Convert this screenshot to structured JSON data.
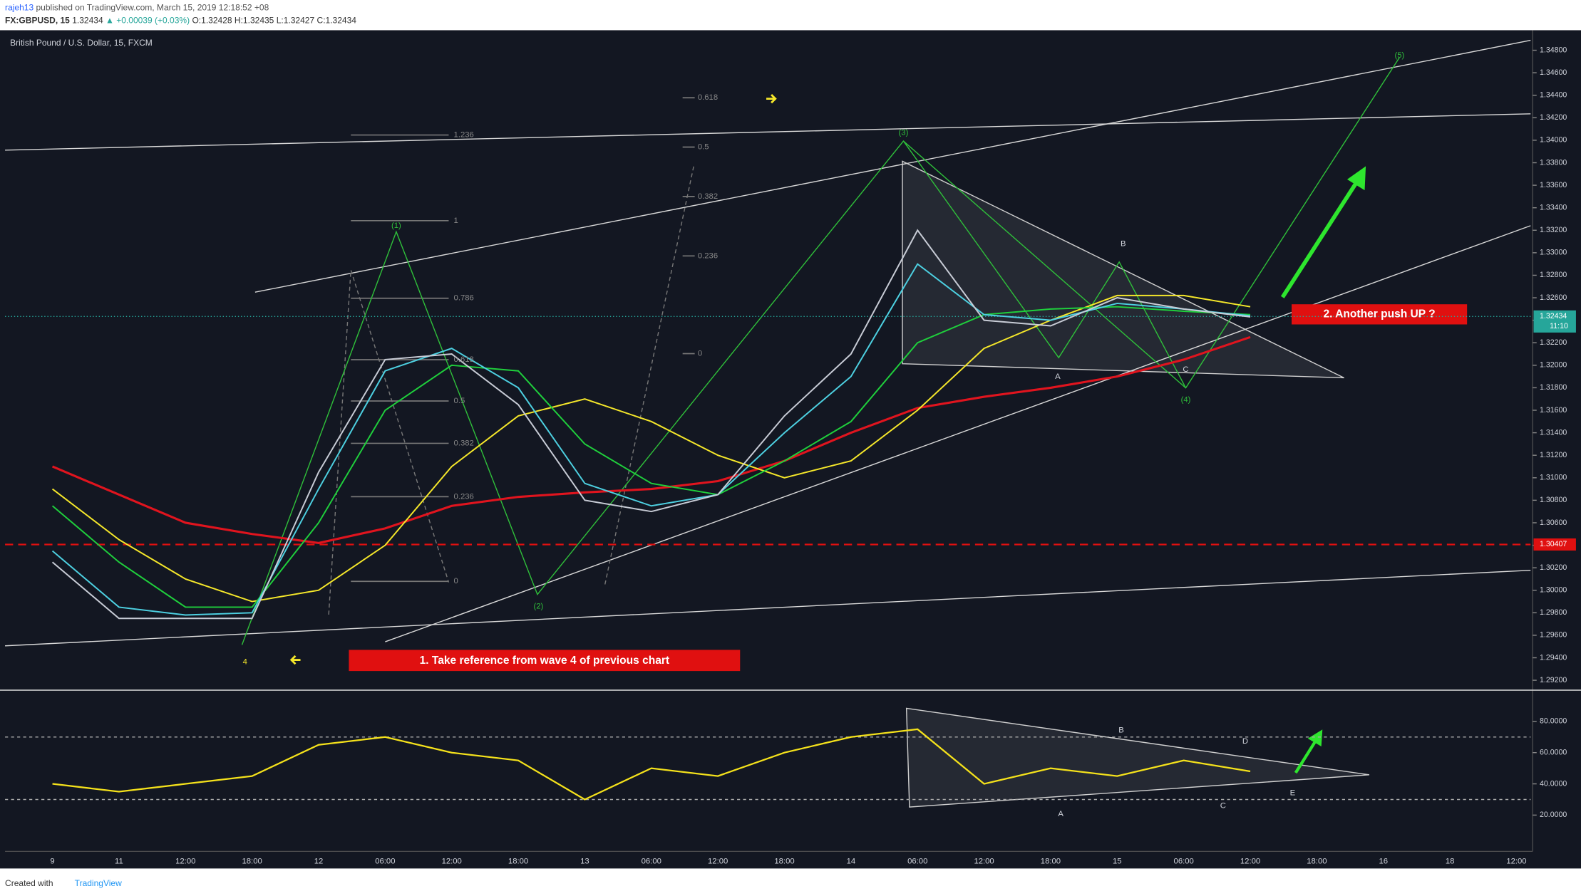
{
  "header": {
    "author": "rajeh13",
    "published": "published on TradingView.com, March 15, 2019 12:18:52 +08",
    "symbol": "FX:GBPUSD, 15",
    "last": "1.32434",
    "change": "▲ +0.00039 (+0.03%)",
    "open": "O:1.32428",
    "high": "H:1.32435",
    "low": "L:1.32427",
    "close": "C:1.32434"
  },
  "chart_data": [
    {
      "type": "line",
      "title": "British Pound / U.S. Dollar, 15, FXCM",
      "categories": [
        "9",
        "11",
        "12:00",
        "18:00",
        "12",
        "06:00",
        "12:00",
        "18:00",
        "13",
        "06:00",
        "12:00",
        "18:00",
        "14",
        "06:00",
        "12:00",
        "18:00",
        "15",
        "06:00",
        "12:00",
        "18:00",
        "16",
        "18",
        "12:00"
      ],
      "series": [
        {
          "color": "#e0141e",
          "values": [
            1.311,
            1.3085,
            1.306,
            1.305,
            1.3042,
            1.3055,
            1.3075,
            1.3083,
            1.3087,
            1.309,
            1.3097,
            1.3115,
            1.314,
            1.3162,
            1.3172,
            1.318,
            1.319,
            1.3205,
            1.3225,
            null,
            null,
            null,
            null
          ]
        },
        {
          "color": "#f5e72a",
          "values": [
            1.309,
            1.3045,
            1.301,
            1.299,
            1.3,
            1.304,
            1.311,
            1.3155,
            1.317,
            1.315,
            1.312,
            1.31,
            1.3115,
            1.316,
            1.3215,
            1.324,
            1.3262,
            1.3262,
            1.3252,
            null,
            null,
            null,
            null
          ]
        },
        {
          "color": "#1fcf3c",
          "values": [
            1.3075,
            1.3025,
            1.2985,
            1.2985,
            1.306,
            1.316,
            1.32,
            1.3195,
            1.313,
            1.3095,
            1.3085,
            1.3115,
            1.315,
            1.322,
            1.3245,
            1.325,
            1.3252,
            1.3248,
            1.3245,
            null,
            null,
            null,
            null
          ]
        },
        {
          "color": "#4dd0e1",
          "values": [
            1.3035,
            1.2985,
            1.2978,
            1.298,
            1.309,
            1.3195,
            1.3215,
            1.318,
            1.3095,
            1.3075,
            1.3085,
            1.314,
            1.319,
            1.329,
            1.3245,
            1.324,
            1.3255,
            1.325,
            1.3244,
            null,
            null,
            null,
            null
          ]
        },
        {
          "color": "#c8ccd6",
          "values": [
            1.3025,
            1.2975,
            1.2975,
            1.2975,
            1.3105,
            1.3205,
            1.321,
            1.3165,
            1.308,
            1.307,
            1.3085,
            1.3155,
            1.321,
            1.332,
            1.324,
            1.3235,
            1.326,
            1.325,
            1.3243,
            null,
            null,
            null,
            null
          ]
        }
      ],
      "ylim": [
        1.2913,
        1.3496
      ],
      "yticks": [
        {
          "value": 1.348,
          "label": "1.34800"
        },
        {
          "value": 1.346,
          "label": "1.34600"
        },
        {
          "value": 1.344,
          "label": "1.34400"
        },
        {
          "value": 1.342,
          "label": "1.34200"
        },
        {
          "value": 1.34,
          "label": "1.34000"
        },
        {
          "value": 1.338,
          "label": "1.33800"
        },
        {
          "value": 1.336,
          "label": "1.33600"
        },
        {
          "value": 1.334,
          "label": "1.33400"
        },
        {
          "value": 1.332,
          "label": "1.33200"
        },
        {
          "value": 1.33,
          "label": "1.33000"
        },
        {
          "value": 1.328,
          "label": "1.32800"
        },
        {
          "value": 1.326,
          "label": "1.32600"
        },
        {
          "value": 1.324,
          "label": "1.32400"
        },
        {
          "value": 1.322,
          "label": "1.32200"
        },
        {
          "value": 1.32,
          "label": "1.32000"
        },
        {
          "value": 1.318,
          "label": "1.31800"
        },
        {
          "value": 1.316,
          "label": "1.31600"
        },
        {
          "value": 1.314,
          "label": "1.31400"
        },
        {
          "value": 1.312,
          "label": "1.31200"
        },
        {
          "value": 1.31,
          "label": "1.31000"
        },
        {
          "value": 1.308,
          "label": "1.30800"
        },
        {
          "value": 1.306,
          "label": "1.30600"
        },
        {
          "value": 1.304,
          "label": "1.30400"
        },
        {
          "value": 1.302,
          "label": "1.30200"
        },
        {
          "value": 1.3,
          "label": "1.30000"
        },
        {
          "value": 1.298,
          "label": "1.29800"
        },
        {
          "value": 1.296,
          "label": "1.29600"
        },
        {
          "value": 1.294,
          "label": "1.29400"
        },
        {
          "value": 1.292,
          "label": "1.29200"
        }
      ],
      "last_price": {
        "value": 1.32434,
        "label": "1.32434"
      },
      "countdown": "11:10",
      "level": {
        "value": 1.30407,
        "label": "1.30407"
      },
      "wave_labels": [
        "(1)",
        "(2)",
        "(3)",
        "(4)",
        "(5)",
        "4",
        "A",
        "B",
        "C"
      ],
      "fib_labels": [
        "1.236",
        "1",
        "0.786",
        "0.618",
        "0.5",
        "0.382",
        "0.236",
        "0",
        "0.618",
        "0.5",
        "0.382",
        "0.236",
        "0"
      ],
      "notes": [
        "1. Take reference from wave 4 of previous chart",
        "2. Another push UP ?"
      ]
    },
    {
      "type": "line",
      "color": "#f5e21b",
      "values": [
        40,
        35,
        40,
        45,
        65,
        70,
        60,
        55,
        30,
        50,
        45,
        60,
        70,
        75,
        40,
        50,
        45,
        55,
        48,
        null,
        null,
        null,
        null
      ],
      "ylim": [
        0,
        100
      ],
      "hlines": [
        30,
        70
      ],
      "yticks": [
        {
          "value": 80,
          "label": "80.0000"
        },
        {
          "value": 60,
          "label": "60.0000"
        },
        {
          "value": 40,
          "label": "40.0000"
        },
        {
          "value": 20,
          "label": "20.0000"
        }
      ],
      "wave_labels": [
        "A",
        "B",
        "C",
        "D",
        "E"
      ]
    }
  ],
  "footer": {
    "created": "Created with",
    "brand": "TradingView"
  }
}
